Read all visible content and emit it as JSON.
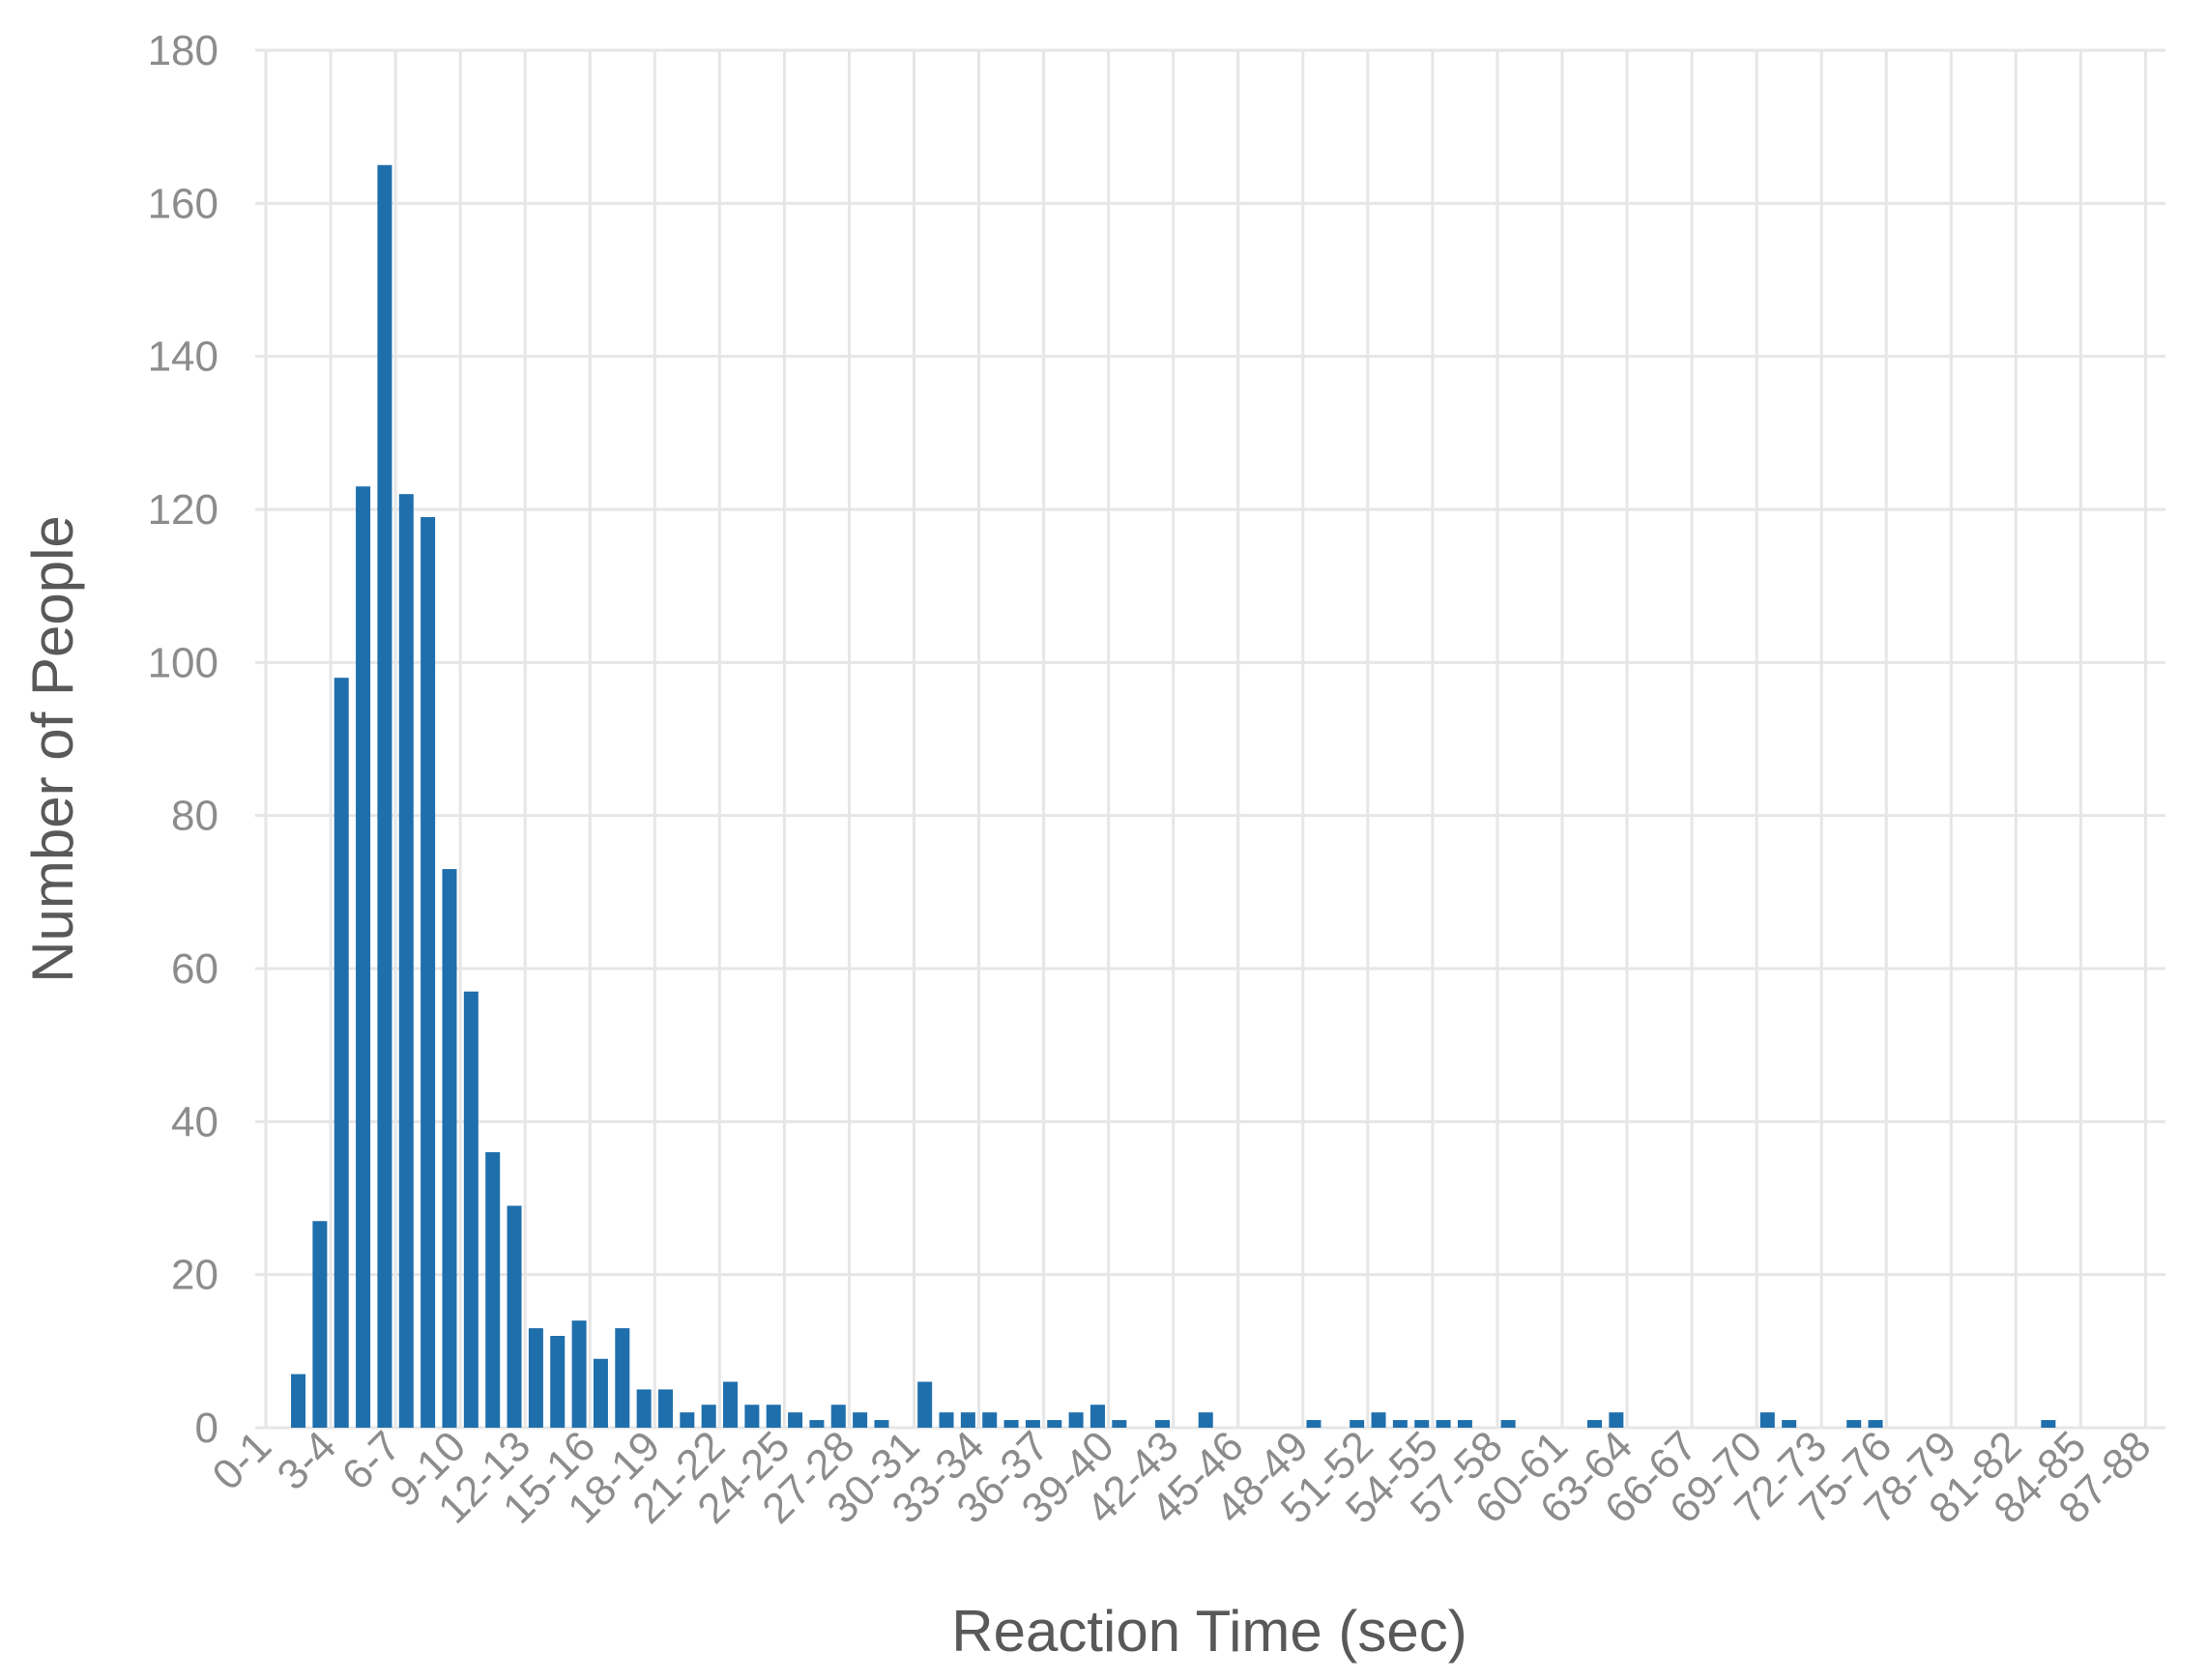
{
  "chart_data": {
    "type": "bar",
    "xlabel": "Reaction Time (sec)",
    "ylabel": "Number of People",
    "ylim": [
      0,
      180
    ],
    "y_ticks": [
      0,
      20,
      40,
      60,
      80,
      100,
      120,
      140,
      160,
      180
    ],
    "grid": true,
    "colors": {
      "bar": "#1f6fad",
      "grid": "#e6e6e6",
      "text": "#8c8c8c",
      "title": "#595959"
    },
    "x_tick_labels": [
      "0-1",
      "3-4",
      "6-7",
      "9-10",
      "12-13",
      "15-16",
      "18-19",
      "21-22",
      "24-25",
      "27-28",
      "30-31",
      "33-34",
      "36-37",
      "39-40",
      "42-43",
      "45-46",
      "48-49",
      "51-52",
      "54-55",
      "57-58",
      "60-61",
      "63-64",
      "66-67",
      "69-70",
      "72-73",
      "75-76",
      "78-79",
      "81-82",
      "84-85",
      "87-88"
    ],
    "categories": [
      "0-1",
      "1-2",
      "2-3",
      "3-4",
      "4-5",
      "5-6",
      "6-7",
      "7-8",
      "8-9",
      "9-10",
      "10-11",
      "11-12",
      "12-13",
      "13-14",
      "14-15",
      "15-16",
      "16-17",
      "17-18",
      "18-19",
      "19-20",
      "20-21",
      "21-22",
      "22-23",
      "23-24",
      "24-25",
      "25-26",
      "26-27",
      "27-28",
      "28-29",
      "29-30",
      "30-31",
      "31-32",
      "32-33",
      "33-34",
      "34-35",
      "35-36",
      "36-37",
      "37-38",
      "38-39",
      "39-40",
      "40-41",
      "41-42",
      "42-43",
      "43-44",
      "44-45",
      "45-46",
      "46-47",
      "47-48",
      "48-49",
      "49-50",
      "50-51",
      "51-52",
      "52-53",
      "53-54",
      "54-55",
      "55-56",
      "56-57",
      "57-58",
      "58-59",
      "59-60",
      "60-61",
      "61-62",
      "62-63",
      "63-64",
      "64-65",
      "65-66",
      "66-67",
      "67-68",
      "68-69",
      "69-70",
      "70-71",
      "71-72",
      "72-73",
      "73-74",
      "74-75",
      "75-76",
      "76-77",
      "77-78",
      "78-79",
      "79-80",
      "80-81",
      "81-82",
      "82-83",
      "83-84",
      "84-85",
      "85-86",
      "86-87",
      "87-88",
      "88-89"
    ],
    "values": [
      0,
      7,
      27,
      98,
      123,
      165,
      122,
      119,
      73,
      57,
      36,
      29,
      13,
      12,
      14,
      9,
      13,
      5,
      5,
      2,
      3,
      6,
      3,
      3,
      2,
      1,
      3,
      2,
      1,
      0,
      6,
      2,
      2,
      2,
      1,
      1,
      1,
      2,
      3,
      1,
      0,
      1,
      0,
      2,
      0,
      0,
      0,
      0,
      1,
      0,
      1,
      2,
      1,
      1,
      1,
      1,
      0,
      1,
      0,
      0,
      0,
      1,
      2,
      0,
      0,
      0,
      0,
      0,
      0,
      2,
      1,
      0,
      0,
      1,
      1,
      0,
      0,
      0,
      0,
      0,
      0,
      0,
      1,
      0,
      0,
      0,
      0,
      0,
      0
    ]
  }
}
